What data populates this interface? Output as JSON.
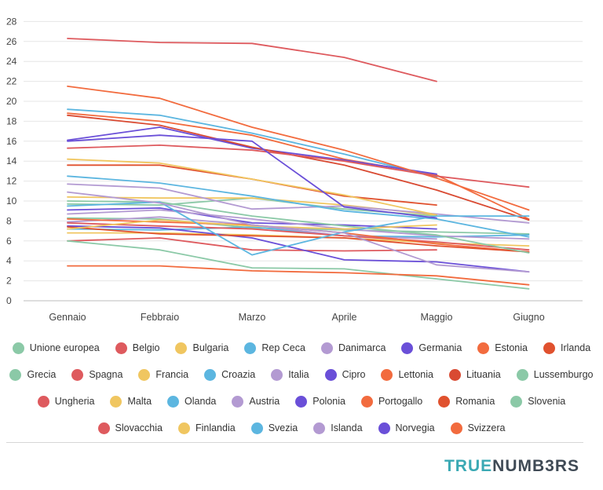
{
  "chart_data": {
    "type": "line",
    "title": "",
    "xlabel": "",
    "ylabel": "",
    "x": [
      "Gennaio",
      "Febbraio",
      "Marzo",
      "Aprile",
      "Maggio",
      "Giugno"
    ],
    "ylim": [
      0,
      28
    ],
    "yticks": [
      0,
      2,
      4,
      6,
      8,
      10,
      12,
      14,
      16,
      18,
      20,
      22,
      24,
      26,
      28
    ],
    "grid": true,
    "legend_position": "bottom",
    "series": [
      {
        "name": "Unione europea",
        "color": "#8bc9a7",
        "values": [
          8.3,
          8.2,
          7.3,
          7.1,
          6.9,
          6.7
        ]
      },
      {
        "name": "Belgio",
        "color": "#de5a5e",
        "values": [
          6.0,
          6.3,
          5.1,
          5.0,
          5.1,
          null
        ]
      },
      {
        "name": "Bulgaria",
        "color": "#f0c660",
        "values": [
          6.8,
          6.8,
          6.6,
          6.3,
          5.8,
          5.5
        ]
      },
      {
        "name": "Rep Ceca",
        "color": "#5cb6e0",
        "values": [
          7.2,
          7.1,
          7.4,
          6.5,
          6.4,
          6.6
        ]
      },
      {
        "name": "Danimarca",
        "color": "#b39ad2",
        "values": [
          7.9,
          8.4,
          7.6,
          6.5,
          6.2,
          null
        ]
      },
      {
        "name": "Germania",
        "color": "#6a4fd8",
        "values": [
          9.1,
          9.3,
          7.8,
          7.6,
          7.2,
          null
        ]
      },
      {
        "name": "Estonia",
        "color": "#f26b3e",
        "values": [
          18.8,
          18.0,
          16.6,
          14.2,
          12.6,
          8.2
        ]
      },
      {
        "name": "Irlanda",
        "color": "#e0512e",
        "values": [
          13.6,
          13.6,
          12.2,
          10.5,
          9.6,
          null
        ]
      },
      {
        "name": "Grecia",
        "color": "#8bc9a7",
        "values": [
          9.7,
          9.6,
          10.3,
          9.2,
          8.5,
          null
        ]
      },
      {
        "name": "Spagna",
        "color": "#de5a5e",
        "values": [
          26.3,
          25.9,
          25.8,
          24.4,
          22.0,
          null
        ]
      },
      {
        "name": "Francia",
        "color": "#f0c660",
        "values": [
          10.4,
          10.3,
          10.3,
          9.6,
          8.6,
          null
        ]
      },
      {
        "name": "Croazia",
        "color": "#5cb6e0",
        "values": [
          19.2,
          18.6,
          16.8,
          14.7,
          12.4,
          null
        ]
      },
      {
        "name": "Italia",
        "color": "#b39ad2",
        "values": [
          11.7,
          11.3,
          9.2,
          9.5,
          8.7,
          7.8
        ]
      },
      {
        "name": "Cipro",
        "color": "#6a4fd8",
        "values": [
          16.1,
          17.4,
          15.3,
          14.1,
          12.7,
          null
        ]
      },
      {
        "name": "Lettonia",
        "color": "#f26b3e",
        "values": [
          21.5,
          20.3,
          17.4,
          15.1,
          12.3,
          9.1
        ]
      },
      {
        "name": "Lituania",
        "color": "#d94a32",
        "values": [
          18.6,
          17.6,
          15.4,
          13.6,
          11.1,
          8.1
        ]
      },
      {
        "name": "Lussemburgo",
        "color": "#8bc9a7",
        "values": [
          6.0,
          5.1,
          3.3,
          3.2,
          2.2,
          1.2
        ]
      },
      {
        "name": "Ungheria",
        "color": "#de5a5e",
        "values": [
          7.8,
          7.5,
          7.2,
          6.5,
          5.9,
          5.1
        ]
      },
      {
        "name": "Malta",
        "color": "#f0c660",
        "values": [
          14.2,
          13.8,
          12.2,
          10.6,
          8.6,
          null
        ]
      },
      {
        "name": "Olanda",
        "color": "#5cb6e0",
        "values": [
          12.5,
          11.8,
          10.5,
          9.0,
          8.2,
          6.4
        ]
      },
      {
        "name": "Austria",
        "color": "#b39ad2",
        "values": [
          8.7,
          9.1,
          8.2,
          7.2,
          6.5,
          6.2
        ]
      },
      {
        "name": "Polonia",
        "color": "#6a4fd8",
        "values": [
          7.5,
          7.3,
          6.3,
          4.1,
          3.9,
          2.9
        ]
      },
      {
        "name": "Portogallo",
        "color": "#f26b3e",
        "values": [
          8.2,
          7.9,
          7.6,
          6.8,
          5.7,
          4.9
        ]
      },
      {
        "name": "Romania",
        "color": "#e0512e",
        "values": [
          7.4,
          6.7,
          6.5,
          6.3,
          5.5,
          4.9
        ]
      },
      {
        "name": "Slovenia",
        "color": "#8bc9a7",
        "values": [
          10.0,
          9.9,
          8.5,
          7.5,
          6.6,
          4.8
        ]
      },
      {
        "name": "Slovacchia",
        "color": "#de5a5e",
        "values": [
          15.3,
          15.6,
          15.1,
          14.0,
          12.5,
          11.4
        ]
      },
      {
        "name": "Finlandia",
        "color": "#f0c660",
        "values": [
          7.2,
          8.1,
          7.5,
          7.2,
          7.6,
          null
        ]
      },
      {
        "name": "Svezia",
        "color": "#5cb6e0",
        "values": [
          9.5,
          9.9,
          4.6,
          6.9,
          8.5,
          8.5
        ]
      },
      {
        "name": "Islanda",
        "color": "#b39ad2",
        "values": [
          10.9,
          9.8,
          7.6,
          6.8,
          3.6,
          2.9
        ]
      },
      {
        "name": "Norvegia",
        "color": "#6a4fd8",
        "values": [
          16.0,
          16.6,
          16.0,
          9.4,
          8.3,
          null
        ]
      },
      {
        "name": "Svizzera",
        "color": "#f26b3e",
        "values": [
          3.5,
          3.5,
          3.0,
          2.8,
          2.5,
          1.6
        ]
      }
    ]
  },
  "legend_rows": [
    [
      0,
      1,
      2,
      3,
      4,
      5,
      6,
      7
    ],
    [
      8,
      9,
      10,
      11,
      12,
      13,
      14,
      15,
      16
    ],
    [
      17,
      18,
      19,
      20,
      21,
      22,
      23,
      24
    ],
    [
      25,
      26,
      27,
      28,
      29,
      30
    ]
  ],
  "brand": {
    "part1": "TRUE",
    "part2": "NUMB3RS"
  }
}
